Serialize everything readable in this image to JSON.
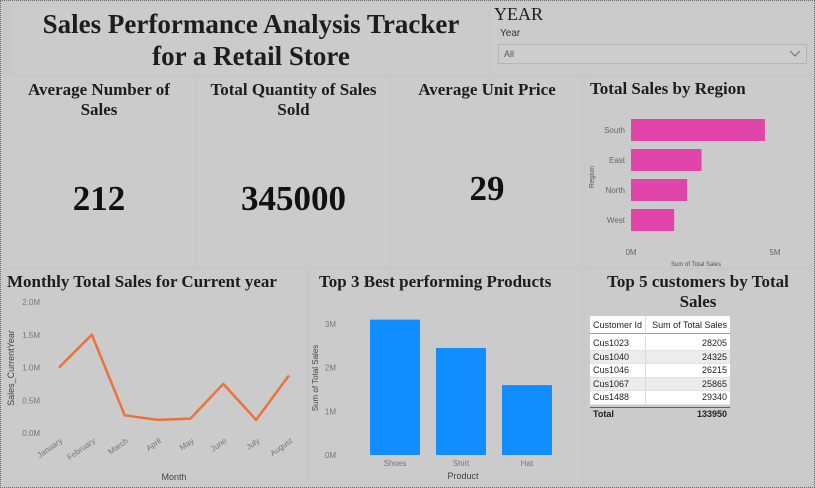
{
  "header": {
    "title_line1": "Sales Performance Analysis Tracker",
    "title_line2": "for a Retail Store"
  },
  "slicer": {
    "heading": "YEAR",
    "label": "Year",
    "value": "All"
  },
  "kpis": [
    {
      "title_line1": "Average Number of",
      "title_line2": "Sales",
      "value": "212"
    },
    {
      "title_line1": "Total Quantity of Sales",
      "title_line2": "Sold",
      "value": "345000"
    },
    {
      "title_line1": "Average Unit Price",
      "title_line2": "",
      "value": "29"
    }
  ],
  "colors": {
    "pink": "#e245aa",
    "orange": "#e8743b",
    "blue": "#118dff"
  },
  "charts": {
    "region": {
      "title": "Total Sales by Region",
      "xlabel": "Sum of Total Sales",
      "ylabel": "Region",
      "xticks": [
        "0M",
        "5M"
      ]
    },
    "monthly": {
      "title": "Monthly Total Sales for Current year",
      "xlabel": "Month",
      "ylabel": "Sales_CurrentYear",
      "yticks": [
        "2.0M",
        "1.5M",
        "1.0M",
        "0.5M",
        "0.0M"
      ]
    },
    "products": {
      "title": "Top 3 Best performing Products",
      "xlabel": "Product",
      "ylabel": "Sum of Total Sales",
      "yticks": [
        "3M",
        "2M",
        "1M",
        "0M"
      ]
    }
  },
  "chart_data": [
    {
      "type": "bar",
      "orientation": "horizontal",
      "title": "Total Sales by Region",
      "categories": [
        "South",
        "East",
        "North",
        "West"
      ],
      "values": [
        4.65,
        2.45,
        1.95,
        1.5
      ],
      "unit": "M",
      "xlim": [
        0,
        5
      ],
      "xlabel": "Sum of Total Sales",
      "ylabel": "Region"
    },
    {
      "type": "line",
      "title": "Monthly Total Sales for Current year",
      "categories": [
        "January",
        "February",
        "March",
        "April",
        "May",
        "June",
        "July",
        "August"
      ],
      "values": [
        1.0,
        1.5,
        0.27,
        0.2,
        0.22,
        0.75,
        0.2,
        0.88
      ],
      "unit": "M",
      "ylim": [
        0,
        2.0
      ],
      "xlabel": "Month",
      "ylabel": "Sales_CurrentYear"
    },
    {
      "type": "bar",
      "title": "Top 3 Best performing Products",
      "categories": [
        "Shoes",
        "Shirt",
        "Hat"
      ],
      "values": [
        3.1,
        2.45,
        1.6
      ],
      "unit": "M",
      "ylim": [
        0,
        3.5
      ],
      "xlabel": "Product",
      "ylabel": "Sum of Total Sales"
    }
  ],
  "customers": {
    "title_line1": "Top 5 customers by Total",
    "title_line2": "Sales",
    "col1": "Customer Id",
    "col2": "Sum of Total Sales",
    "rows": [
      {
        "id": "Cus1023",
        "value": "28205"
      },
      {
        "id": "Cus1040",
        "value": "24325"
      },
      {
        "id": "Cus1046",
        "value": "26215"
      },
      {
        "id": "Cus1067",
        "value": "25865"
      },
      {
        "id": "Cus1488",
        "value": "29340"
      }
    ],
    "total_label": "Total",
    "total_value": "133950"
  }
}
